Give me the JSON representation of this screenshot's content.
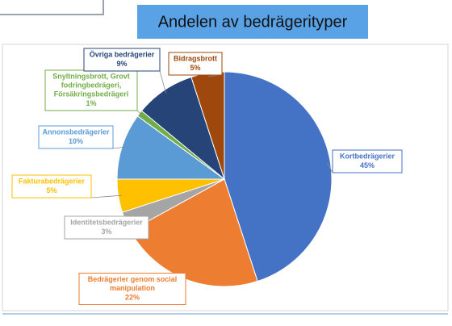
{
  "chart_data": {
    "type": "pie",
    "title": "Andelen av bedrägerityper",
    "categories": [
      "Kortbedrägerier",
      "Bedrägerier genom social\nmanipulation",
      "Identitetsbedrägerier",
      "Fakturabedrägerier",
      "Annonsbedrägerier",
      "Snyltningsbrott, Grovt\nfodringbedrägeri,\nFörsäkringsbedrägeri",
      "Övriga bedrägerier",
      "Bidragsbrott"
    ],
    "values": [
      45,
      22,
      3,
      5,
      10,
      1,
      9,
      5
    ],
    "value_labels": [
      "45%",
      "22%",
      "3%",
      "5%",
      "10%",
      "1%",
      "9%",
      "5%"
    ],
    "colors": [
      "#4472c4",
      "#ed7d31",
      "#a5a5a5",
      "#ffc000",
      "#5b9bd5",
      "#70ad47",
      "#264478",
      "#9e480e"
    ]
  }
}
